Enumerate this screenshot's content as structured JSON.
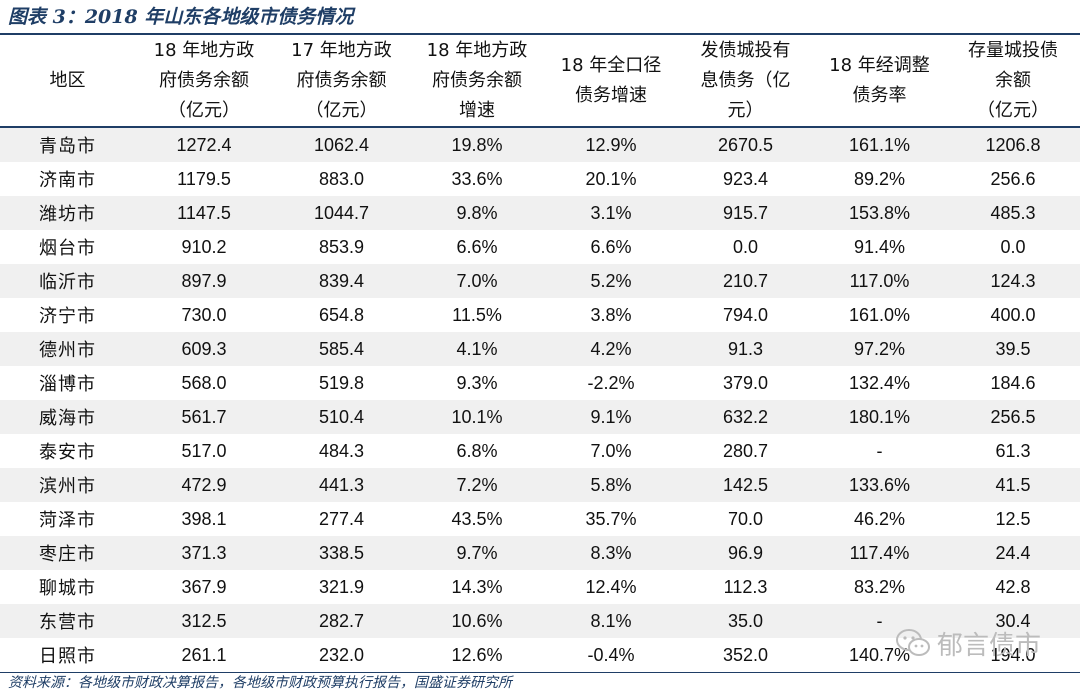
{
  "title": "图表 3：2018 年山东各地级市债务情况",
  "headers": [
    [
      "地区"
    ],
    [
      "18 年地方政",
      "府债务余额",
      "（亿元）"
    ],
    [
      "17 年地方政",
      "府债务余额",
      "（亿元）"
    ],
    [
      "18 年地方政",
      "府债务余额",
      "增速"
    ],
    [
      "18 年全口径",
      "债务增速"
    ],
    [
      "发债城投有",
      "息债务（亿",
      "元）"
    ],
    [
      "18 年经调整",
      "债务率"
    ],
    [
      "存量城投债",
      "余额",
      "（亿元）"
    ]
  ],
  "rows": [
    [
      "青岛市",
      "1272.4",
      "1062.4",
      "19.8%",
      "12.9%",
      "2670.5",
      "161.1%",
      "1206.8"
    ],
    [
      "济南市",
      "1179.5",
      "883.0",
      "33.6%",
      "20.1%",
      "923.4",
      "89.2%",
      "256.6"
    ],
    [
      "潍坊市",
      "1147.5",
      "1044.7",
      "9.8%",
      "3.1%",
      "915.7",
      "153.8%",
      "485.3"
    ],
    [
      "烟台市",
      "910.2",
      "853.9",
      "6.6%",
      "6.6%",
      "0.0",
      "91.4%",
      "0.0"
    ],
    [
      "临沂市",
      "897.9",
      "839.4",
      "7.0%",
      "5.2%",
      "210.7",
      "117.0%",
      "124.3"
    ],
    [
      "济宁市",
      "730.0",
      "654.8",
      "11.5%",
      "3.8%",
      "794.0",
      "161.0%",
      "400.0"
    ],
    [
      "德州市",
      "609.3",
      "585.4",
      "4.1%",
      "4.2%",
      "91.3",
      "97.2%",
      "39.5"
    ],
    [
      "淄博市",
      "568.0",
      "519.8",
      "9.3%",
      "-2.2%",
      "379.0",
      "132.4%",
      "184.6"
    ],
    [
      "威海市",
      "561.7",
      "510.4",
      "10.1%",
      "9.1%",
      "632.2",
      "180.1%",
      "256.5"
    ],
    [
      "泰安市",
      "517.0",
      "484.3",
      "6.8%",
      "7.0%",
      "280.7",
      "-",
      "61.3"
    ],
    [
      "滨州市",
      "472.9",
      "441.3",
      "7.2%",
      "5.8%",
      "142.5",
      "133.6%",
      "41.5"
    ],
    [
      "菏泽市",
      "398.1",
      "277.4",
      "43.5%",
      "35.7%",
      "70.0",
      "46.2%",
      "12.5"
    ],
    [
      "枣庄市",
      "371.3",
      "338.5",
      "9.7%",
      "8.3%",
      "96.9",
      "117.4%",
      "24.4"
    ],
    [
      "聊城市",
      "367.9",
      "321.9",
      "14.3%",
      "12.4%",
      "112.3",
      "83.2%",
      "42.8"
    ],
    [
      "东营市",
      "312.5",
      "282.7",
      "10.6%",
      "8.1%",
      "35.0",
      "-",
      "30.4"
    ],
    [
      "日照市",
      "261.1",
      "232.0",
      "12.6%",
      "-0.4%",
      "352.0",
      "140.7%",
      "194.0"
    ]
  ],
  "source": "资料来源：各地级市财政决算报告，各地级市财政预算执行报告，国盛证券研究所",
  "watermark": {
    "text": "郁言债市",
    "icon": "wechat-icon"
  },
  "colors": {
    "accent": "#1f3e66",
    "stripe": "#f0f0f0",
    "watermark": "#bcbcbc"
  }
}
